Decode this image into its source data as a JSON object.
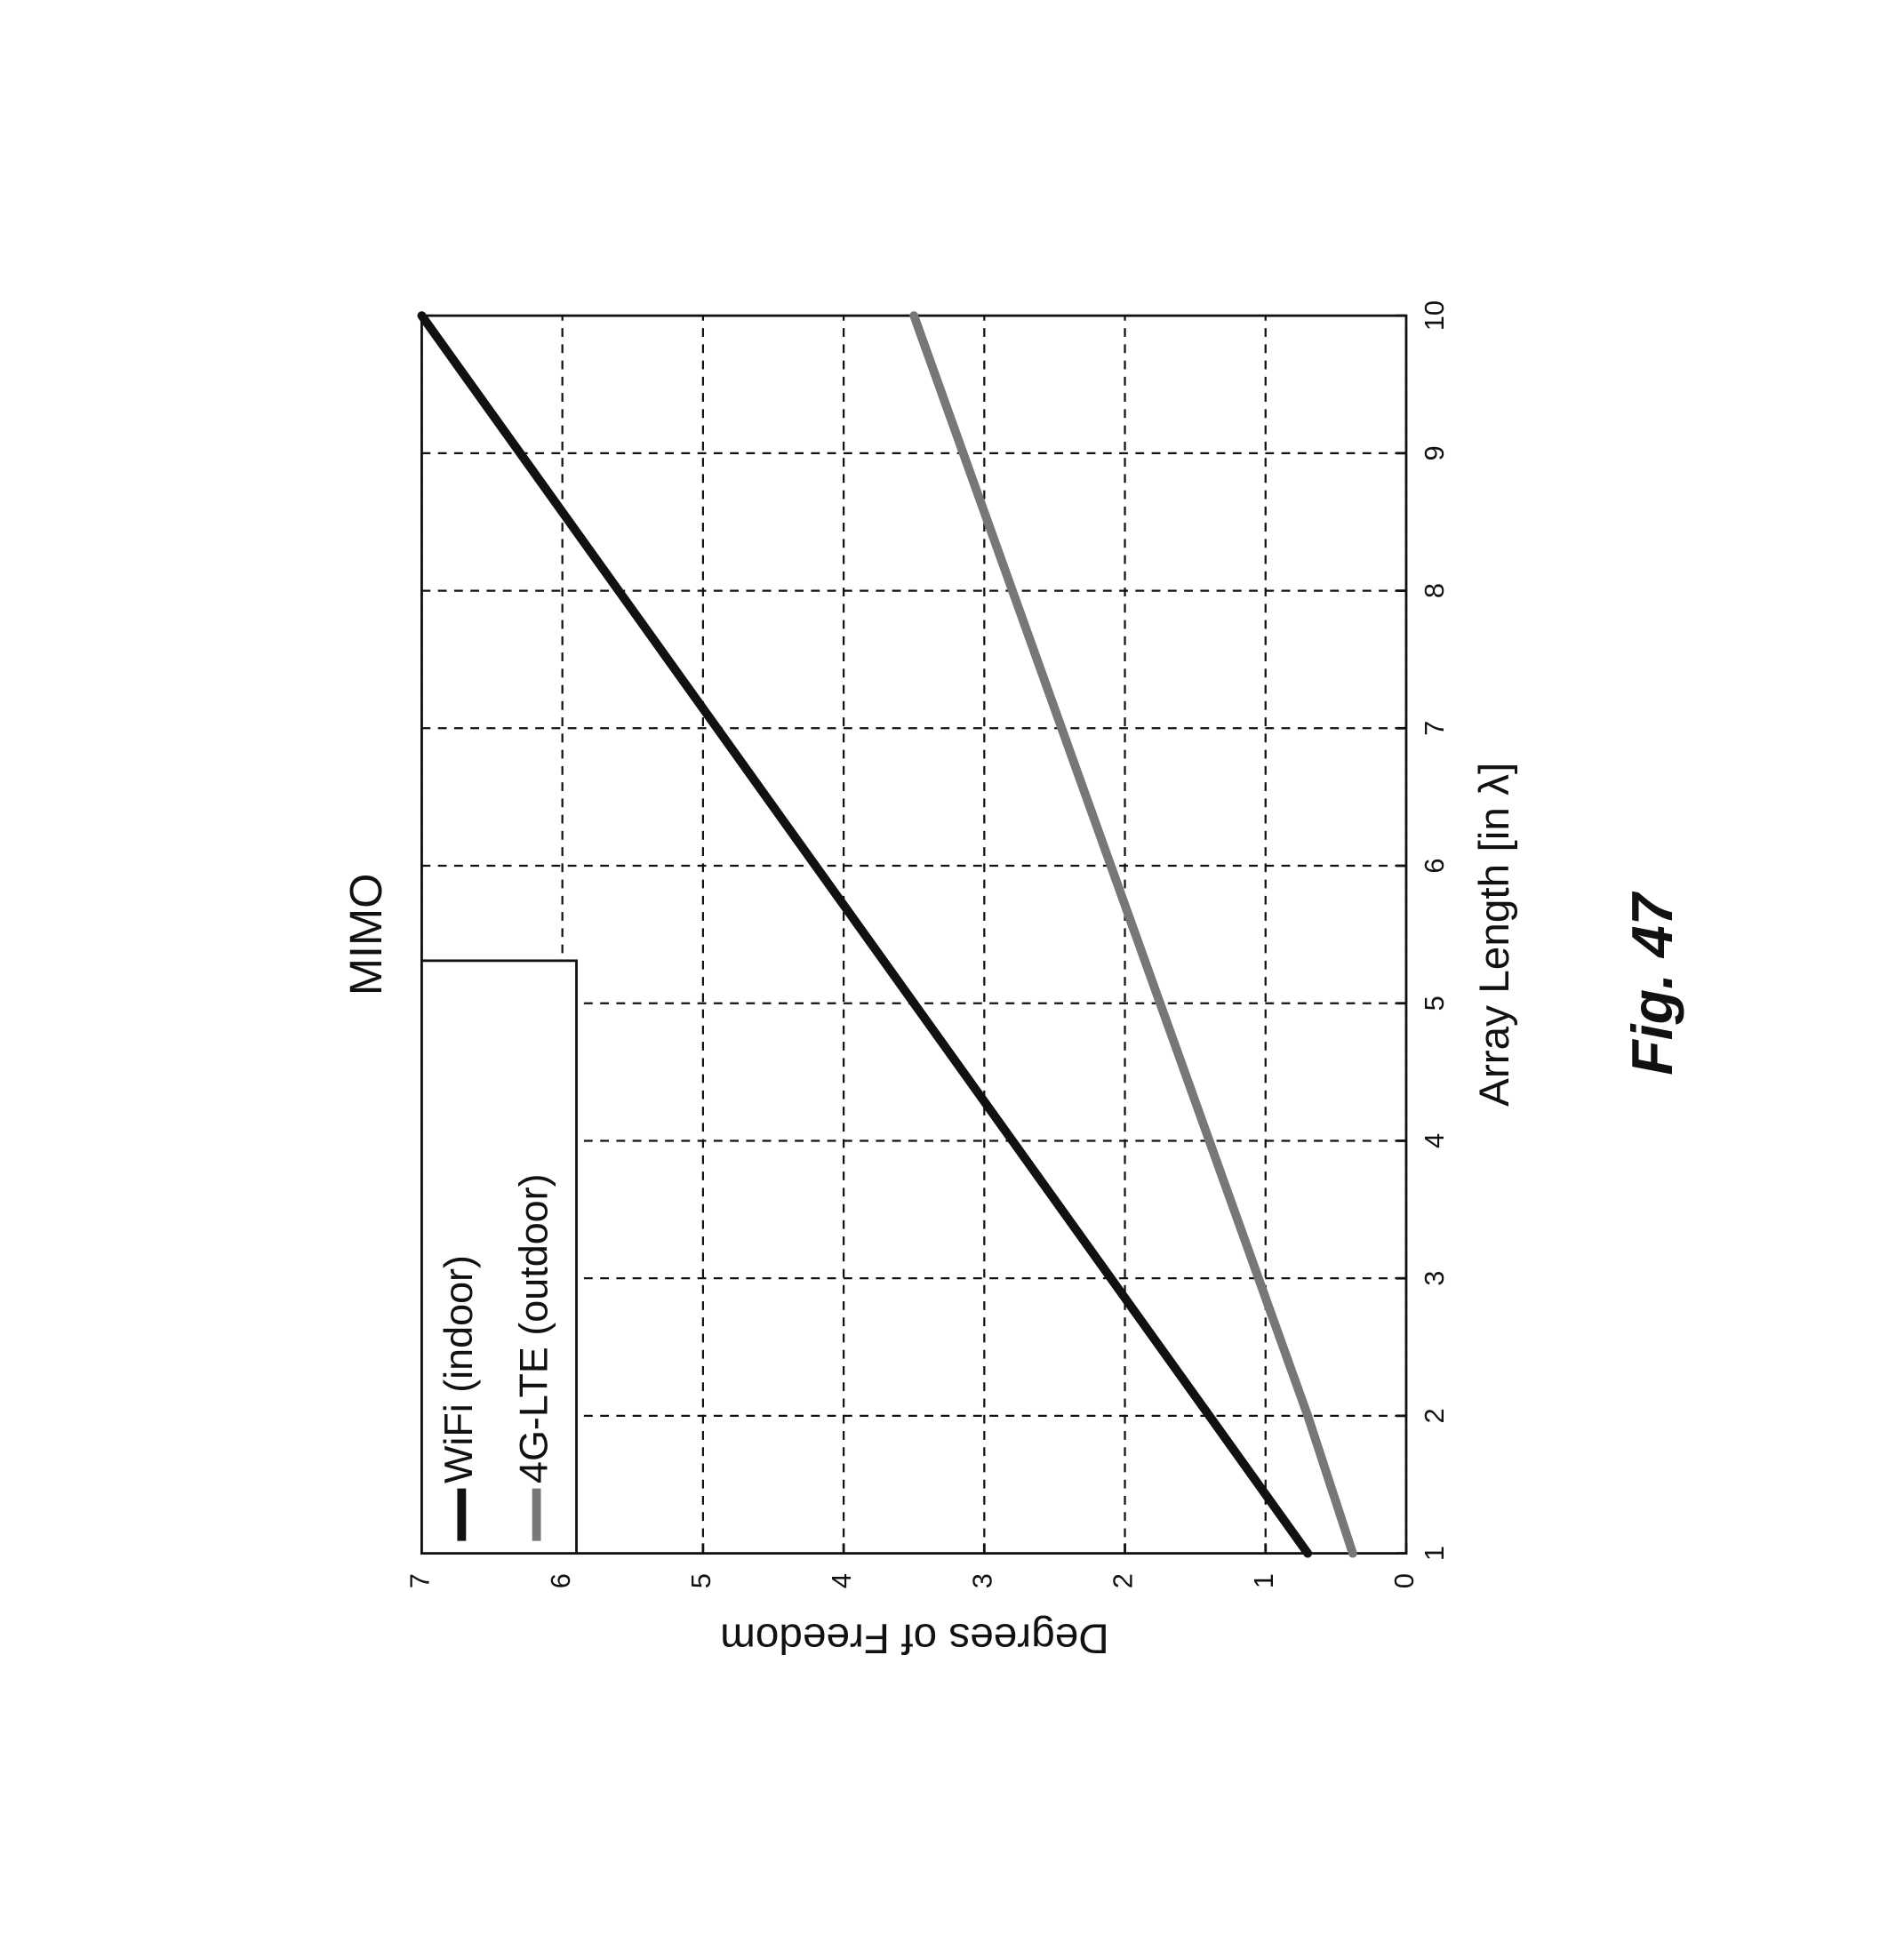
{
  "chart_data": {
    "type": "line",
    "title": "MIMO",
    "x_label": "Array Length [in λ]",
    "y_label": "Degrees of Freedom",
    "caption": "Fig. 47",
    "x": [
      1,
      2,
      3,
      4,
      5,
      6,
      7,
      8,
      9,
      10
    ],
    "series": [
      {
        "name": "WiFi (indoor)",
        "color": "#111111",
        "values": [
          0.7,
          1.4,
          2.1,
          2.8,
          3.5,
          4.2,
          4.9,
          5.6,
          6.3,
          7.0
        ]
      },
      {
        "name": "4G-LTE (outdoor)",
        "color": "#777777",
        "values": [
          0.38,
          0.7,
          1.05,
          1.4,
          1.75,
          2.1,
          2.45,
          2.8,
          3.15,
          3.5
        ]
      }
    ],
    "xlim": [
      1,
      10
    ],
    "xticks": [
      1,
      2,
      3,
      4,
      5,
      6,
      7,
      8,
      9,
      10
    ],
    "ylim": [
      0,
      7
    ],
    "yticks": [
      0,
      1,
      2,
      3,
      4,
      5,
      6,
      7
    ],
    "grid": true,
    "legend": "upper left"
  }
}
